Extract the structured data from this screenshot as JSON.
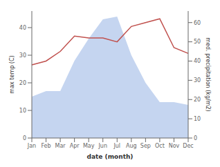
{
  "chart_data": {
    "type": "line",
    "xlabel": "date (month)",
    "ylabel": "max temp (C)",
    "y2label": "med. precipitation (kg/m2)",
    "categories": [
      "Jan",
      "Feb",
      "Mar",
      "Apr",
      "May",
      "Jun",
      "Jul",
      "Aug",
      "Sep",
      "Oct",
      "Nov",
      "Dec"
    ],
    "series": [
      {
        "type": "area",
        "color": "#c5d5f0",
        "values": [
          15,
          17,
          17,
          28,
          36,
          43,
          44,
          30,
          20,
          13,
          13,
          12
        ]
      },
      {
        "type": "line",
        "color": "#c0504d",
        "axis": "y2",
        "values": [
          38,
          40,
          45,
          53,
          52,
          52,
          50,
          58,
          60,
          62,
          47,
          44
        ]
      }
    ],
    "ylim": [
      0,
      46
    ],
    "yticks": [
      0,
      10,
      20,
      30,
      40
    ],
    "y2lim": [
      0,
      66
    ],
    "y2ticks": [
      0,
      10,
      20,
      30,
      40,
      50,
      60
    ],
    "grid": false
  }
}
